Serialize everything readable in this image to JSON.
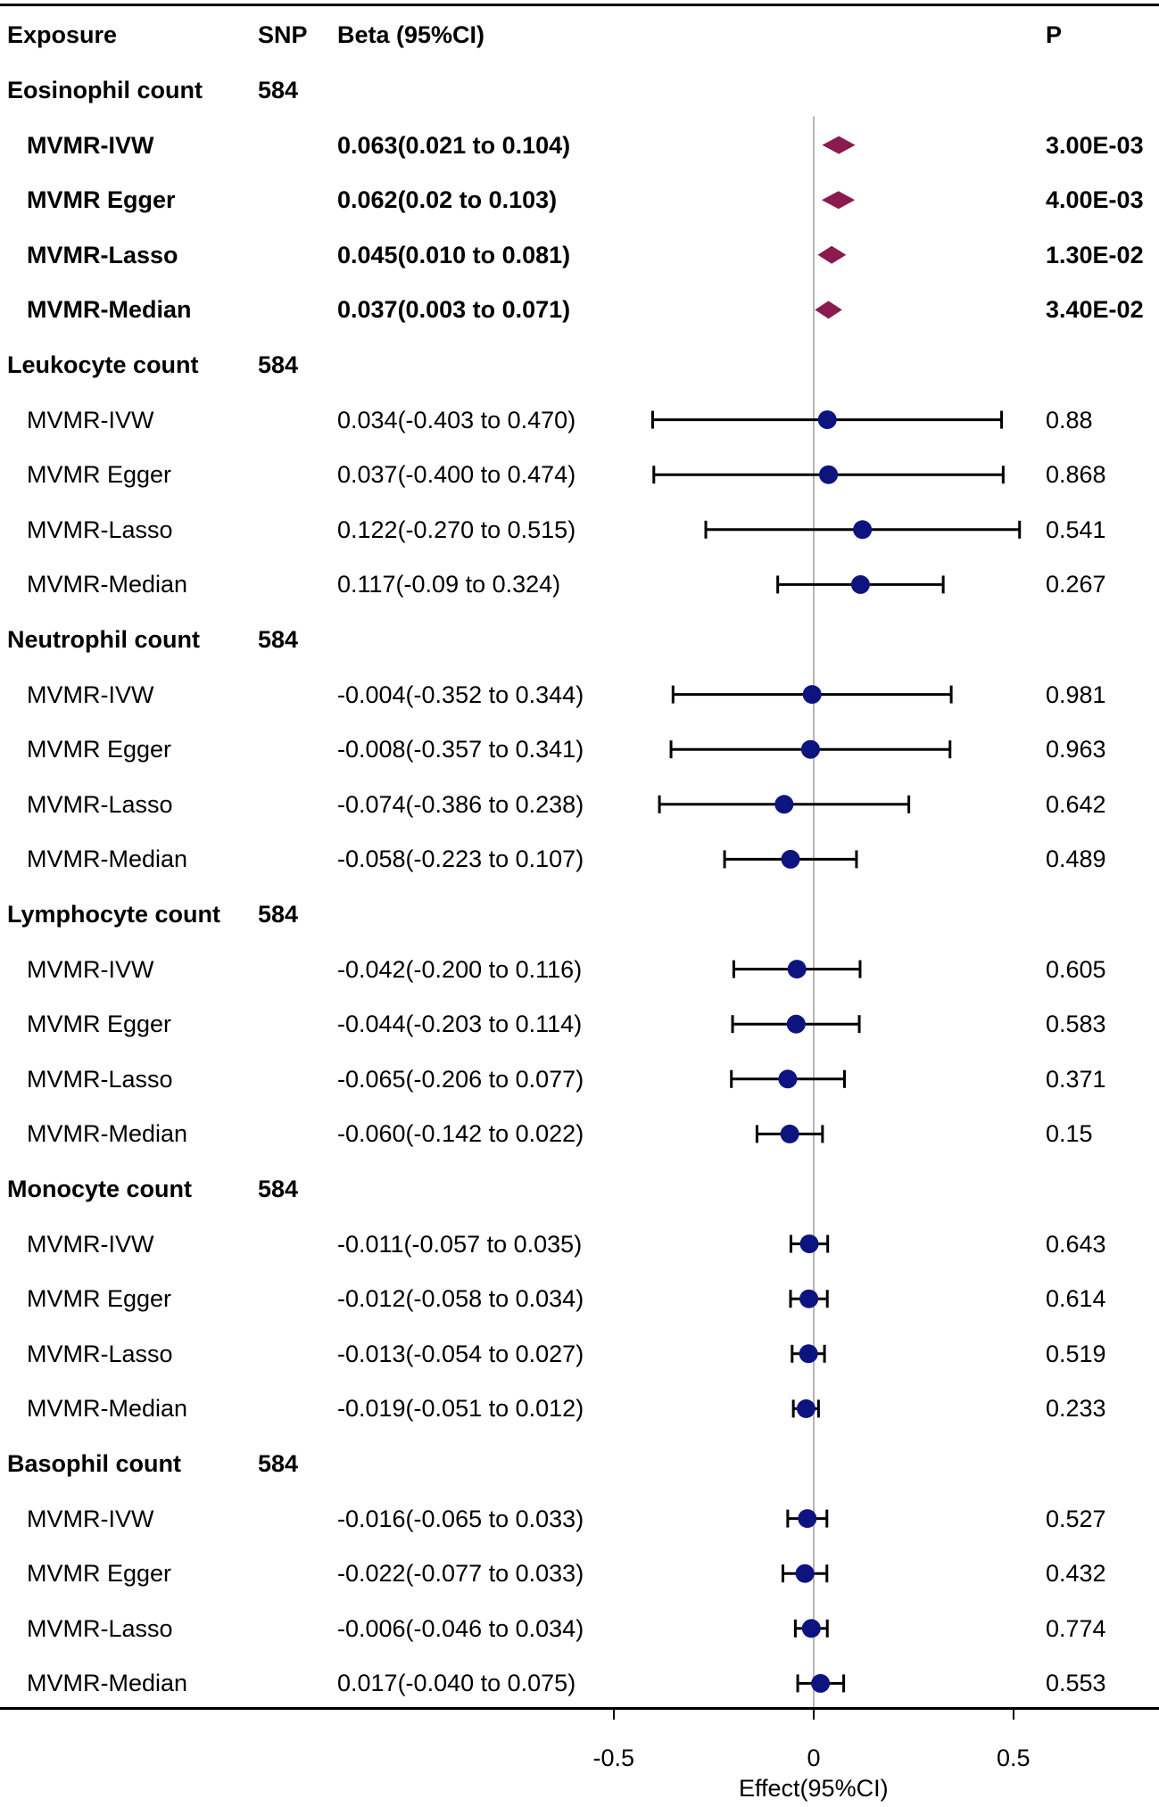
{
  "header": {
    "exposure": "Exposure",
    "snp": "SNP",
    "beta": "Beta (95%CI)",
    "p": "P"
  },
  "chart_data": {
    "type": "forest",
    "xlabel": "Effect(95%CI)",
    "xlim": [
      -1.0,
      0.85
    ],
    "reference_line": 0,
    "ticks": [
      {
        "value": -0.5,
        "label": "-0.5"
      },
      {
        "value": 0,
        "label": "0"
      },
      {
        "value": 0.5,
        "label": "0.5"
      }
    ],
    "colors": {
      "diamond": "#8b1a4e",
      "point": "#0d1480",
      "ci": "#000000",
      "refline": "#b5b5b5"
    },
    "groups": [
      {
        "name": "Eosinophil count",
        "snp": "584",
        "highlight": true,
        "rows": [
          {
            "method": "MVMR-IVW",
            "est": 0.063,
            "lo": 0.021,
            "hi": 0.104,
            "label": "0.063(0.021 to 0.104)",
            "p": "3.00E-03"
          },
          {
            "method": "MVMR Egger",
            "est": 0.062,
            "lo": 0.02,
            "hi": 0.103,
            "label": "0.062(0.02 to 0.103)",
            "p": "4.00E-03"
          },
          {
            "method": "MVMR-Lasso",
            "est": 0.045,
            "lo": 0.01,
            "hi": 0.081,
            "label": "0.045(0.010 to 0.081)",
            "p": "1.30E-02"
          },
          {
            "method": "MVMR-Median",
            "est": 0.037,
            "lo": 0.003,
            "hi": 0.071,
            "label": "0.037(0.003 to 0.071)",
            "p": "3.40E-02"
          }
        ]
      },
      {
        "name": "Leukocyte count",
        "snp": "584",
        "highlight": false,
        "rows": [
          {
            "method": "MVMR-IVW",
            "est": 0.034,
            "lo": -0.403,
            "hi": 0.47,
            "label": "0.034(-0.403 to 0.470)",
            "p": "0.88"
          },
          {
            "method": "MVMR Egger",
            "est": 0.037,
            "lo": -0.4,
            "hi": 0.474,
            "label": "0.037(-0.400 to 0.474)",
            "p": "0.868"
          },
          {
            "method": "MVMR-Lasso",
            "est": 0.122,
            "lo": -0.27,
            "hi": 0.515,
            "label": "0.122(-0.270 to 0.515)",
            "p": "0.541"
          },
          {
            "method": "MVMR-Median",
            "est": 0.117,
            "lo": -0.09,
            "hi": 0.324,
            "label": "0.117(-0.09 to 0.324)",
            "p": "0.267"
          }
        ]
      },
      {
        "name": "Neutrophil count",
        "snp": "584",
        "highlight": false,
        "rows": [
          {
            "method": "MVMR-IVW",
            "est": -0.004,
            "lo": -0.352,
            "hi": 0.344,
            "label": "-0.004(-0.352 to 0.344)",
            "p": "0.981"
          },
          {
            "method": "MVMR Egger",
            "est": -0.008,
            "lo": -0.357,
            "hi": 0.341,
            "label": "-0.008(-0.357 to 0.341)",
            "p": "0.963"
          },
          {
            "method": "MVMR-Lasso",
            "est": -0.074,
            "lo": -0.386,
            "hi": 0.238,
            "label": "-0.074(-0.386 to 0.238)",
            "p": "0.642"
          },
          {
            "method": "MVMR-Median",
            "est": -0.058,
            "lo": -0.223,
            "hi": 0.107,
            "label": "-0.058(-0.223 to 0.107)",
            "p": "0.489"
          }
        ]
      },
      {
        "name": "Lymphocyte count",
        "snp": "584",
        "highlight": false,
        "rows": [
          {
            "method": "MVMR-IVW",
            "est": -0.042,
            "lo": -0.2,
            "hi": 0.116,
            "label": "-0.042(-0.200 to 0.116)",
            "p": "0.605"
          },
          {
            "method": "MVMR Egger",
            "est": -0.044,
            "lo": -0.203,
            "hi": 0.114,
            "label": "-0.044(-0.203 to 0.114)",
            "p": "0.583"
          },
          {
            "method": "MVMR-Lasso",
            "est": -0.065,
            "lo": -0.206,
            "hi": 0.077,
            "label": "-0.065(-0.206 to 0.077)",
            "p": "0.371"
          },
          {
            "method": "MVMR-Median",
            "est": -0.06,
            "lo": -0.142,
            "hi": 0.022,
            "label": "-0.060(-0.142 to 0.022)",
            "p": "0.15"
          }
        ]
      },
      {
        "name": "Monocyte count",
        "snp": "584",
        "highlight": false,
        "rows": [
          {
            "method": "MVMR-IVW",
            "est": -0.011,
            "lo": -0.057,
            "hi": 0.035,
            "label": "-0.011(-0.057 to 0.035)",
            "p": "0.643"
          },
          {
            "method": "MVMR Egger",
            "est": -0.012,
            "lo": -0.058,
            "hi": 0.034,
            "label": "-0.012(-0.058 to 0.034)",
            "p": "0.614"
          },
          {
            "method": "MVMR-Lasso",
            "est": -0.013,
            "lo": -0.054,
            "hi": 0.027,
            "label": "-0.013(-0.054 to 0.027)",
            "p": "0.519"
          },
          {
            "method": "MVMR-Median",
            "est": -0.019,
            "lo": -0.051,
            "hi": 0.012,
            "label": "-0.019(-0.051 to 0.012)",
            "p": "0.233"
          }
        ]
      },
      {
        "name": "Basophil count",
        "snp": "584",
        "highlight": false,
        "rows": [
          {
            "method": "MVMR-IVW",
            "est": -0.016,
            "lo": -0.065,
            "hi": 0.033,
            "label": "-0.016(-0.065 to 0.033)",
            "p": "0.527"
          },
          {
            "method": "MVMR Egger",
            "est": -0.022,
            "lo": -0.077,
            "hi": 0.033,
            "label": "-0.022(-0.077 to 0.033)",
            "p": "0.432"
          },
          {
            "method": "MVMR-Lasso",
            "est": -0.006,
            "lo": -0.046,
            "hi": 0.034,
            "label": "-0.006(-0.046 to 0.034)",
            "p": "0.774"
          },
          {
            "method": "MVMR-Median",
            "est": 0.017,
            "lo": -0.04,
            "hi": 0.075,
            "label": "0.017(-0.040 to 0.075)",
            "p": "0.553"
          }
        ]
      }
    ]
  }
}
